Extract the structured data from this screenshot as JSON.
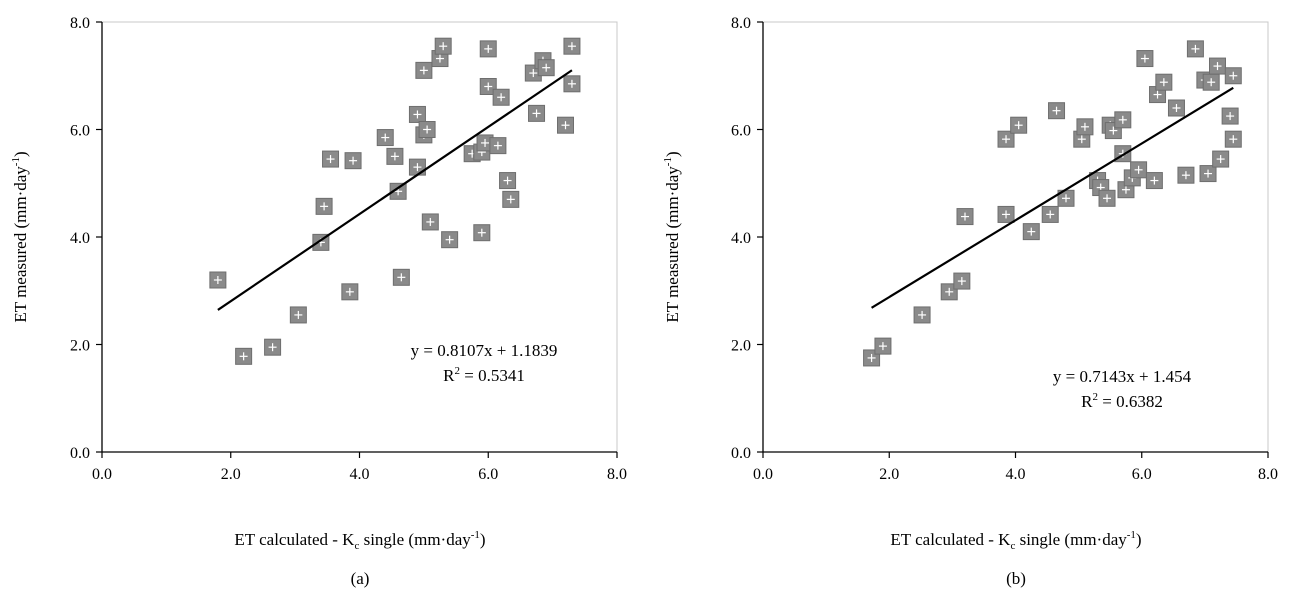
{
  "chart_data": [
    {
      "type": "scatter",
      "panel_label": "(a)",
      "xlabel_main": "ET calculated - K",
      "xlabel_sub": "c",
      "xlabel_tail": " single (mm·day",
      "xlabel_sup": "-1",
      "xlabel_end": ")",
      "ylabel_main": "ET measured (mm·day",
      "ylabel_sup": "-1",
      "ylabel_end": ")",
      "xlim": [
        0,
        8
      ],
      "ylim": [
        0,
        8
      ],
      "xticks": [
        "0.0",
        "2.0",
        "4.0",
        "6.0",
        "8.0"
      ],
      "yticks": [
        "0.0",
        "2.0",
        "4.0",
        "6.0",
        "8.0"
      ],
      "equation": "y = 0.8107x + 1.1839",
      "r2_label": "R",
      "r2_sup": "2",
      "r2_value": " = 0.5341",
      "trendline": {
        "x0": 1.8,
        "x1": 7.3,
        "slope": 0.8107,
        "intercept": 1.1839
      },
      "points": [
        [
          1.8,
          3.2
        ],
        [
          2.2,
          1.78
        ],
        [
          2.65,
          1.95
        ],
        [
          3.05,
          2.55
        ],
        [
          3.4,
          3.9
        ],
        [
          3.45,
          4.57
        ],
        [
          3.55,
          5.45
        ],
        [
          3.85,
          2.98
        ],
        [
          3.9,
          5.42
        ],
        [
          4.4,
          5.85
        ],
        [
          4.55,
          5.5
        ],
        [
          4.6,
          4.85
        ],
        [
          4.65,
          3.25
        ],
        [
          4.9,
          6.28
        ],
        [
          4.9,
          5.3
        ],
        [
          5.0,
          7.1
        ],
        [
          5.0,
          5.9
        ],
        [
          5.05,
          6.0
        ],
        [
          5.1,
          4.28
        ],
        [
          5.25,
          7.32
        ],
        [
          5.3,
          7.55
        ],
        [
          5.4,
          3.95
        ],
        [
          5.75,
          5.55
        ],
        [
          5.9,
          5.58
        ],
        [
          5.95,
          5.75
        ],
        [
          5.9,
          4.08
        ],
        [
          6.0,
          6.8
        ],
        [
          6.0,
          7.5
        ],
        [
          6.15,
          5.7
        ],
        [
          6.2,
          6.6
        ],
        [
          6.3,
          5.05
        ],
        [
          6.35,
          4.7
        ],
        [
          6.7,
          7.05
        ],
        [
          6.75,
          6.3
        ],
        [
          6.85,
          7.28
        ],
        [
          6.9,
          7.15
        ],
        [
          7.2,
          6.08
        ],
        [
          7.3,
          7.55
        ],
        [
          7.3,
          6.85
        ]
      ]
    },
    {
      "type": "scatter",
      "panel_label": "(b)",
      "xlabel_main": "ET calculated - K",
      "xlabel_sub": "c",
      "xlabel_tail": " single (mm·day",
      "xlabel_sup": "-1",
      "xlabel_end": ")",
      "ylabel_main": "ET measured (mm·day",
      "ylabel_sup": "-1",
      "ylabel_end": ")",
      "xlim": [
        0,
        8
      ],
      "ylim": [
        0,
        8
      ],
      "xticks": [
        "0.0",
        "2.0",
        "4.0",
        "6.0",
        "8.0"
      ],
      "yticks": [
        "0.0",
        "2.0",
        "4.0",
        "6.0",
        "8.0"
      ],
      "equation": "y = 0.7143x + 1.454",
      "r2_label": "R",
      "r2_sup": "2",
      "r2_value": " = 0.6382",
      "trendline": {
        "x0": 1.72,
        "x1": 7.45,
        "slope": 0.7143,
        "intercept": 1.454
      },
      "points": [
        [
          1.72,
          1.75
        ],
        [
          1.9,
          1.97
        ],
        [
          2.52,
          2.55
        ],
        [
          2.95,
          2.98
        ],
        [
          3.15,
          3.18
        ],
        [
          3.2,
          4.38
        ],
        [
          3.85,
          4.42
        ],
        [
          3.85,
          5.82
        ],
        [
          4.05,
          6.08
        ],
        [
          4.25,
          4.1
        ],
        [
          4.55,
          4.42
        ],
        [
          4.65,
          6.35
        ],
        [
          4.8,
          4.72
        ],
        [
          5.05,
          5.82
        ],
        [
          5.1,
          6.05
        ],
        [
          5.3,
          5.05
        ],
        [
          5.35,
          4.92
        ],
        [
          5.45,
          4.72
        ],
        [
          5.5,
          6.08
        ],
        [
          5.55,
          5.98
        ],
        [
          5.7,
          6.18
        ],
        [
          5.7,
          5.55
        ],
        [
          5.75,
          4.88
        ],
        [
          5.85,
          5.1
        ],
        [
          5.95,
          5.25
        ],
        [
          6.05,
          7.32
        ],
        [
          6.2,
          5.05
        ],
        [
          6.25,
          6.65
        ],
        [
          6.35,
          6.88
        ],
        [
          6.55,
          6.4
        ],
        [
          6.7,
          5.15
        ],
        [
          6.85,
          7.5
        ],
        [
          7.0,
          6.92
        ],
        [
          7.05,
          5.18
        ],
        [
          7.1,
          6.88
        ],
        [
          7.2,
          7.18
        ],
        [
          7.25,
          5.45
        ],
        [
          7.4,
          6.25
        ],
        [
          7.45,
          7.0
        ],
        [
          7.45,
          5.82
        ]
      ]
    }
  ]
}
